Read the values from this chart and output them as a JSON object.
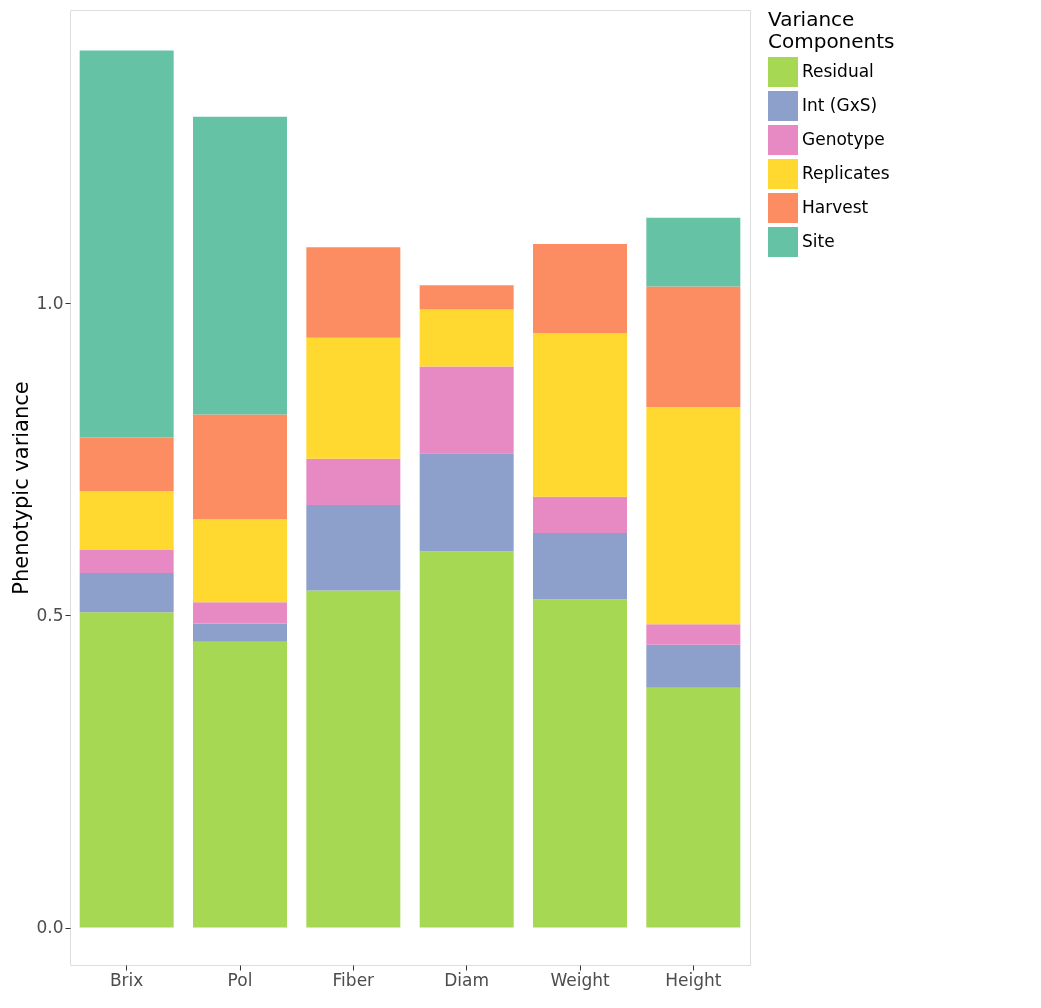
{
  "chart_data": {
    "type": "bar",
    "stacked": true,
    "ylabel": "Phenotypic variance",
    "legend_title": "Variance Components",
    "categories": [
      "Brix",
      "Pol",
      "Fiber",
      "Diam",
      "Weight",
      "Height"
    ],
    "series": [
      {
        "name": "Residual",
        "color": "#a6d854",
        "values": [
          0.505,
          0.458,
          0.54,
          0.603,
          0.526,
          0.384
        ]
      },
      {
        "name": "Int (GxS)",
        "color": "#8da0cb",
        "values": [
          0.063,
          0.029,
          0.137,
          0.157,
          0.106,
          0.069
        ]
      },
      {
        "name": "Genotype",
        "color": "#e78ac3",
        "values": [
          0.037,
          0.034,
          0.074,
          0.139,
          0.058,
          0.033
        ]
      },
      {
        "name": "Replicates",
        "color": "#ffd92f",
        "values": [
          0.094,
          0.133,
          0.194,
          0.091,
          0.262,
          0.348
        ]
      },
      {
        "name": "Harvest",
        "color": "#fc8d62",
        "values": [
          0.086,
          0.168,
          0.145,
          0.039,
          0.143,
          0.193
        ]
      },
      {
        "name": "Site",
        "color": "#66c2a5",
        "values": [
          0.62,
          0.477,
          null,
          null,
          null,
          0.11
        ]
      }
    ],
    "ylim": [
      -0.06,
      1.47
    ],
    "yticks": [
      {
        "value": 0,
        "label": "0.0"
      },
      {
        "value": 0.5,
        "label": "0.5"
      },
      {
        "value": 1,
        "label": "1.0"
      }
    ],
    "grid": false,
    "legend": "right"
  }
}
